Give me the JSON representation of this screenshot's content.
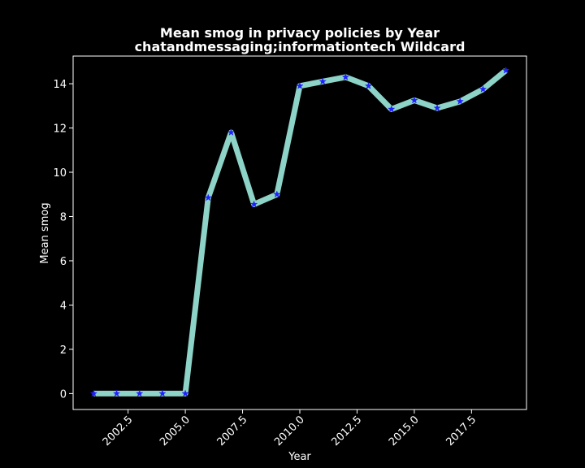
{
  "chart_data": {
    "type": "line",
    "title_line1": "Mean smog in privacy policies by Year",
    "title_line2": "chatandmessaging;informationtech Wildcard",
    "xlabel": "Year",
    "ylabel": "Mean smog",
    "xlim": [
      2000.1,
      2019.9
    ],
    "ylim": [
      -0.72,
      15.25
    ],
    "xticks": [
      2002.5,
      2005.0,
      2007.5,
      2010.0,
      2012.5,
      2015.0,
      2017.5
    ],
    "xtick_labels": [
      "2002.5",
      "2005.0",
      "2007.5",
      "2010.0",
      "2012.5",
      "2015.0",
      "2017.5"
    ],
    "yticks": [
      0,
      2,
      4,
      6,
      8,
      10,
      12,
      14
    ],
    "ytick_labels": [
      "0",
      "2",
      "4",
      "6",
      "8",
      "10",
      "12",
      "14"
    ],
    "series": [
      {
        "name": "Mean smog",
        "x": [
          2001,
          2002,
          2003,
          2004,
          2005,
          2006,
          2007,
          2008,
          2009,
          2010,
          2011,
          2012,
          2013,
          2014,
          2015,
          2016,
          2017,
          2018,
          2019
        ],
        "y": [
          0,
          0,
          0,
          0,
          0,
          8.85,
          11.8,
          8.55,
          9.0,
          13.9,
          14.1,
          14.3,
          13.9,
          12.85,
          13.25,
          12.9,
          13.2,
          13.75,
          14.6
        ],
        "line_color": "#8dd3c7",
        "marker_color": "#1f1fff"
      }
    ],
    "background": "#000000",
    "axes_color": "#ffffff"
  }
}
